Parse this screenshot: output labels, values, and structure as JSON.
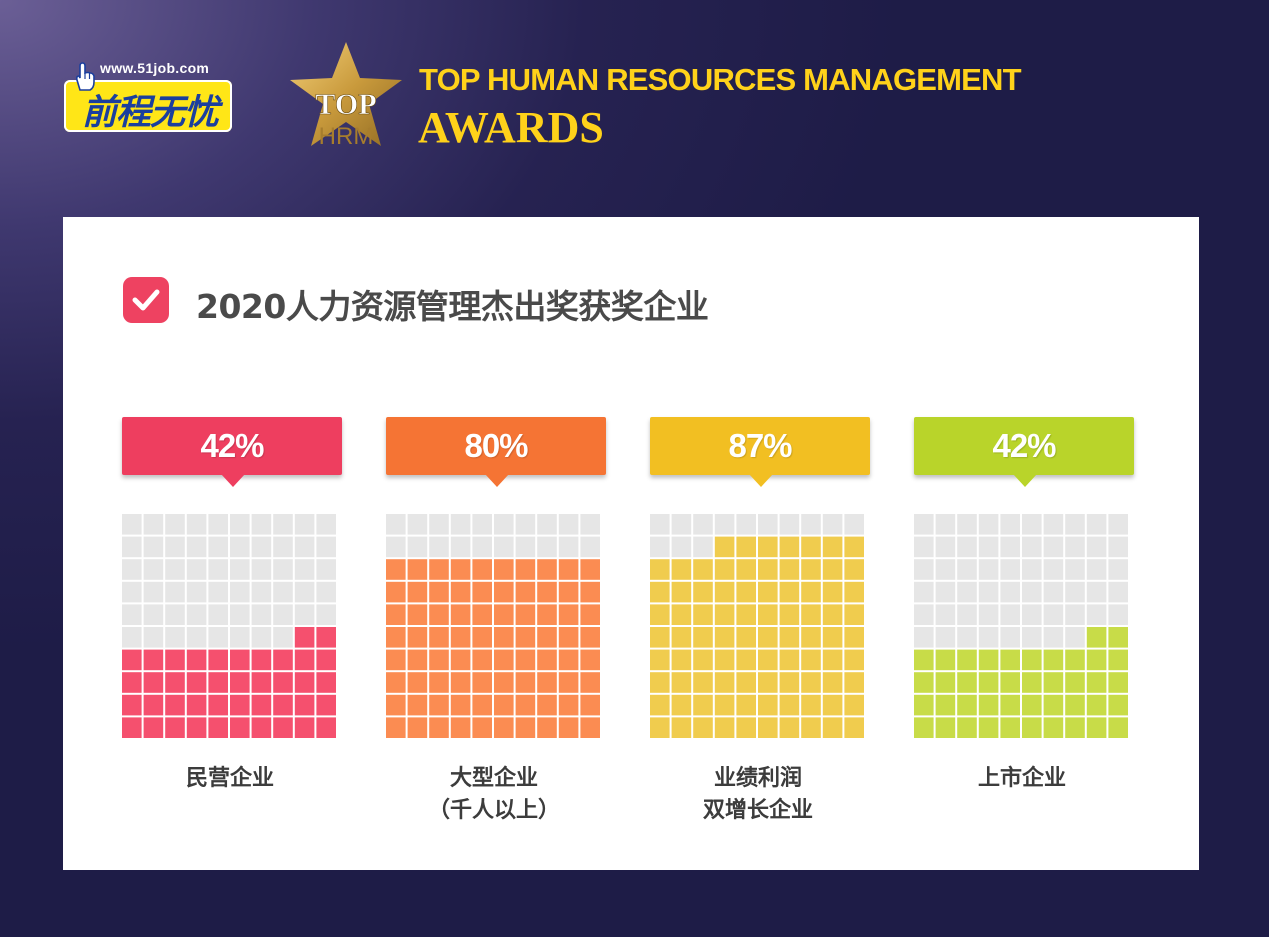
{
  "header": {
    "logo_url_text": "www.51job.com",
    "logo_cn_text": "前程无忧",
    "badge_top": "TOP",
    "badge_hrm": "HRM",
    "title_line1": "TOP HUMAN RESOURCES MANAGEMENT",
    "title_line2": "AWARDS"
  },
  "colors": {
    "background": "#262251",
    "title": "#ffd21a",
    "empty_cell": "#e6e6e6"
  },
  "chart_data": {
    "type": "waffle",
    "title": "2020人力资源管理杰出奖获奖企业",
    "grid": {
      "rows": 10,
      "cols": 10
    },
    "categories": [
      {
        "label_lines": [
          "民营企业"
        ],
        "value": 42,
        "value_label": "42%",
        "color": "#f5506e",
        "banner_color": "#ee3e5f"
      },
      {
        "label_lines": [
          "大型企业",
          "（千人以上）"
        ],
        "value": 80,
        "value_label": "80%",
        "color": "#fb8c52",
        "banner_color": "#f57434"
      },
      {
        "label_lines": [
          "业绩利润",
          "双增长企业"
        ],
        "value": 87,
        "value_label": "87%",
        "color": "#f0cc4e",
        "banner_color": "#f2bf22"
      },
      {
        "label_lines": [
          "上市企业"
        ],
        "value": 42,
        "value_label": "42%",
        "color": "#c8dc48",
        "banner_color": "#b9d42a"
      }
    ]
  }
}
